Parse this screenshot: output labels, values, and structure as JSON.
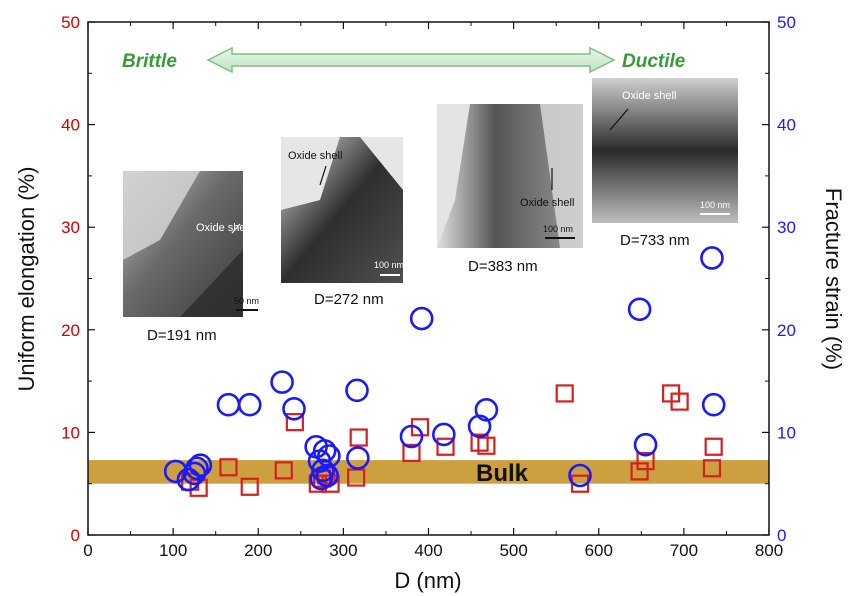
{
  "chart_data": {
    "type": "scatter",
    "title": "",
    "xlabel": "D (nm)",
    "ylabel_left": "Uniform elongation (%)",
    "ylabel_right": "Fracture strain (%)",
    "xlim": [
      0,
      800
    ],
    "ylim_left": [
      0,
      50
    ],
    "ylim_right": [
      0,
      50
    ],
    "x_ticks": [
      0,
      100,
      200,
      300,
      400,
      500,
      600,
      700,
      800
    ],
    "y_ticks_left": [
      0,
      10,
      20,
      30,
      40,
      50
    ],
    "y_ticks_right": [
      0,
      10,
      20,
      30,
      40,
      50
    ],
    "colors": {
      "uniform_elongation": "#d42020",
      "fracture_strain": "#1a1aff",
      "left_axis": "#d00000",
      "right_axis": "#1a1aff",
      "bulk_band": "#c8962a",
      "arrow": "#3a9a3a"
    },
    "bulk_band": {
      "label": "Bulk",
      "y_range": [
        5,
        7.3
      ]
    },
    "regime_arrow": {
      "from_label": "Brittle",
      "to_label": "Ductile"
    },
    "series": [
      {
        "marker": "square",
        "axis": "left",
        "x": [
          120,
          130,
          165,
          190,
          230,
          243,
          270,
          275,
          280,
          285,
          315,
          318,
          380,
          390,
          420,
          460,
          468,
          560,
          578,
          648,
          655,
          685,
          695,
          733,
          735
        ],
        "y": [
          5.2,
          4.6,
          6.6,
          4.7,
          6.3,
          11.0,
          5.0,
          5.5,
          5.8,
          5.0,
          5.6,
          9.5,
          8.0,
          10.5,
          8.6,
          9.0,
          8.7,
          13.8,
          5.0,
          6.2,
          7.2,
          13.8,
          13.0,
          6.5,
          8.6
        ]
      },
      {
        "marker": "circle",
        "axis": "right",
        "x": [
          103,
          118,
          125,
          128,
          132,
          165,
          190,
          228,
          242,
          268,
          272,
          274,
          276,
          278,
          281,
          283,
          316,
          317,
          380,
          392,
          418,
          460,
          468,
          578,
          648,
          655,
          733,
          735
        ],
        "y": [
          6.2,
          5.4,
          6.0,
          6.5,
          6.8,
          12.7,
          12.7,
          14.9,
          12.3,
          8.6,
          7.2,
          5.5,
          6.3,
          8.2,
          5.8,
          7.7,
          14.1,
          7.5,
          9.6,
          21.1,
          9.8,
          10.6,
          12.2,
          5.8,
          22.0,
          8.8,
          27.0,
          12.7
        ]
      }
    ],
    "insets": [
      {
        "caption": "D=191 nm",
        "note": "Oxide shell",
        "scale": "50 nm"
      },
      {
        "caption": "D=272 nm",
        "note": "Oxide shell",
        "scale": "100 nm"
      },
      {
        "caption": "D=383 nm",
        "note": "Oxide shell",
        "scale": "100 nm"
      },
      {
        "caption": "D=733 nm",
        "note": "Oxide shell",
        "scale": "100 nm"
      }
    ]
  }
}
